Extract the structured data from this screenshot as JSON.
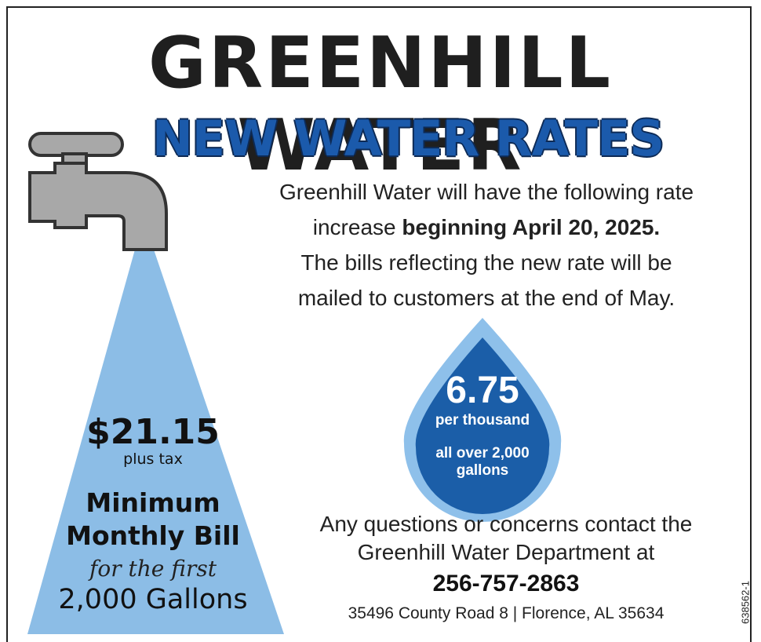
{
  "header": {
    "title": "GREENHILL WATER",
    "subtitle": "NEW WATER RATES"
  },
  "notice": {
    "lines": [
      "Greenhill Water will have the following rate",
      "increase",
      "The bills reflecting the new rate will be",
      "mailed to customers at the end of May."
    ],
    "effective": "beginning April 20, 2025."
  },
  "rate": {
    "amount": "6.75",
    "unit": "per thousand",
    "condition": "all over 2,000 gallons"
  },
  "minimum": {
    "price": "$21.15",
    "tax": "plus tax",
    "label": "Minimum Monthly Bill",
    "note": "for the first",
    "gallons": "2,000 Gallons"
  },
  "contact": {
    "text": "Any questions or concerns contact the Greenhill Water Department at",
    "phone": "256-757-2863",
    "address": "35496 County Road 8 | Florence, AL 35634"
  },
  "ad_id": "638562-1"
}
